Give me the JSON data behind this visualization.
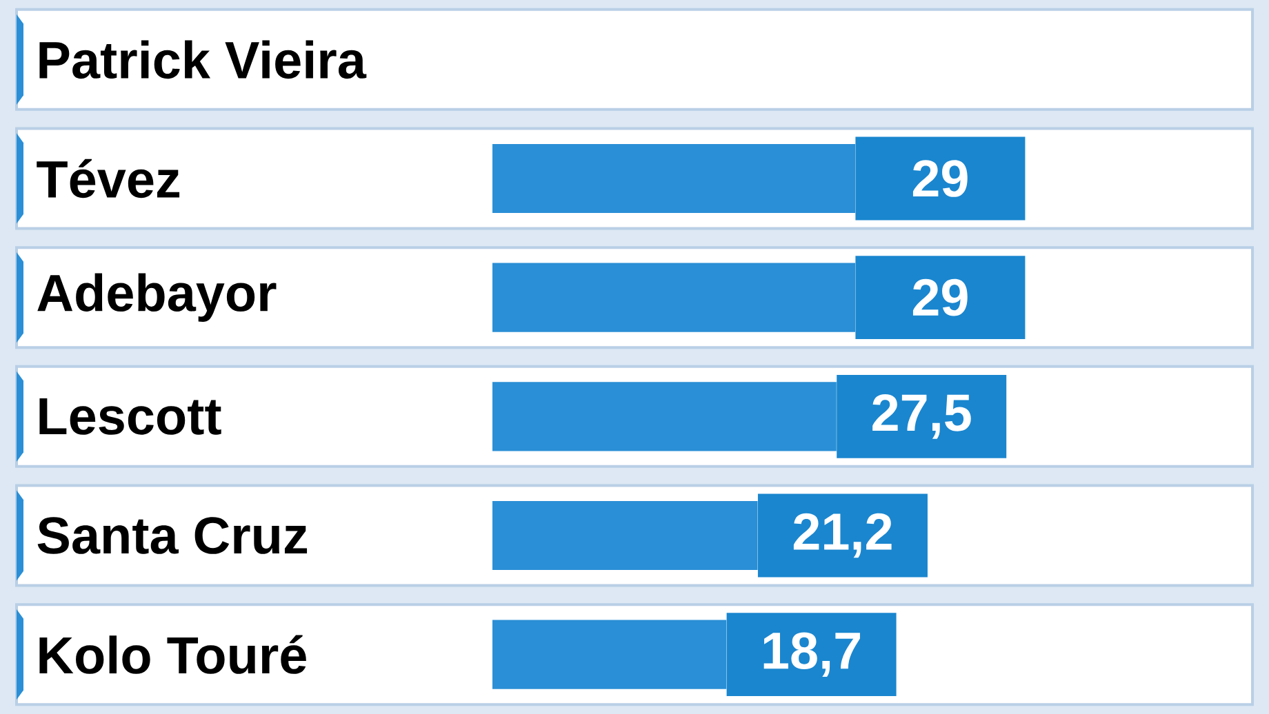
{
  "chart_data": {
    "type": "bar",
    "orientation": "horizontal",
    "categories": [
      "Patrick Vieira",
      "Tévez",
      "Adebayor",
      "Lescott",
      "Santa Cruz",
      "Kolo Touré"
    ],
    "values": [
      null,
      29,
      29,
      27.5,
      21.2,
      18.7
    ],
    "value_labels": [
      null,
      "29",
      "29",
      "27,5",
      "21,2",
      "18,7"
    ],
    "color": "#2a8fd6"
  }
}
